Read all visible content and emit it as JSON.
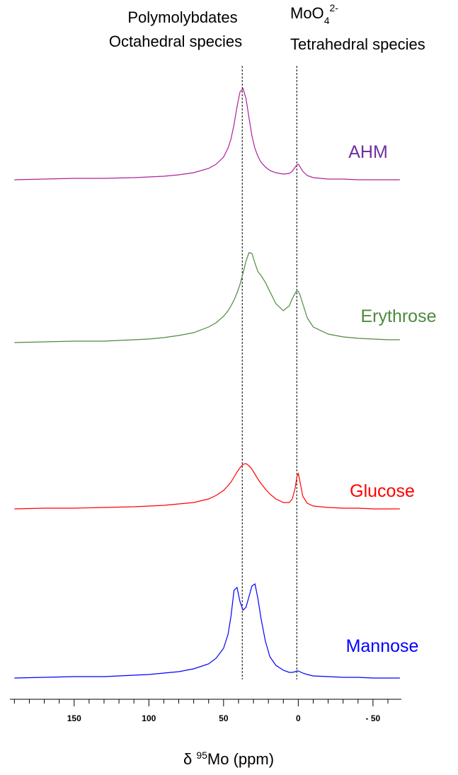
{
  "chart_data": {
    "type": "line",
    "x_label_parts": [
      "δ ",
      "95",
      "Mo (ppm)"
    ],
    "annotations": [
      {
        "lines": [
          "Polymolybdates",
          "Octahedral species"
        ]
      },
      {
        "parts": [
          "MoO",
          "4",
          "2-"
        ],
        "lines": [
          "Tetrahedral species"
        ]
      }
    ],
    "reference_lines": [
      37.5,
      1
    ],
    "xlim": [
      193,
      -69
    ],
    "xticks": [
      150,
      100,
      50,
      0,
      {
        "value": -50,
        "label": "- 50"
      }
    ],
    "xminor_ticks": [
      190,
      180,
      170,
      160,
      140,
      130,
      120,
      110,
      90,
      80,
      70,
      60,
      40,
      30,
      20,
      10,
      -10,
      -20,
      -30,
      -40,
      -60
    ],
    "ylim": [
      0,
      130
    ],
    "x": [
      190,
      170,
      150,
      130,
      110,
      100,
      90,
      80,
      70,
      60,
      55,
      50,
      47,
      45,
      43,
      41,
      39,
      37,
      35,
      33,
      31,
      29,
      27,
      25,
      22,
      19,
      15,
      10,
      6,
      4,
      2,
      1,
      0,
      -1,
      -3,
      -6,
      -10,
      -20,
      -30,
      -40,
      -50,
      -60,
      -68
    ],
    "series": [
      {
        "name": "AHM",
        "color": "#b0209a",
        "label_color": "#7030a0",
        "values": [
          0,
          1,
          2,
          2,
          3,
          4,
          5,
          7,
          10,
          16,
          22,
          32,
          45,
          58,
          78,
          103,
          124,
          129,
          115,
          88,
          62,
          44,
          33,
          25,
          18,
          13,
          10,
          8,
          9,
          12,
          18,
          21,
          22,
          19,
          12,
          6,
          3,
          1,
          1,
          0,
          0,
          0,
          0
        ]
      },
      {
        "name": "Erythrose",
        "color": "#4e8a3e",
        "label_color": "#4e8a3e",
        "values": [
          0,
          1,
          2,
          2,
          4,
          5,
          7,
          10,
          14,
          22,
          28,
          37,
          45,
          52,
          60,
          70,
          82,
          98,
          115,
          127,
          126,
          112,
          100,
          95,
          85,
          72,
          55,
          45,
          52,
          62,
          70,
          73,
          72,
          68,
          55,
          35,
          22,
          12,
          8,
          6,
          5,
          4,
          4
        ]
      },
      {
        "name": "Glucose",
        "color": "#ff0000",
        "label_color": "#ff0000",
        "values": [
          0,
          1,
          1,
          2,
          3,
          4,
          5,
          7,
          9,
          14,
          19,
          26,
          33,
          38,
          45,
          52,
          58,
          63,
          64,
          61,
          56,
          49,
          42,
          36,
          28,
          21,
          14,
          9,
          9,
          14,
          30,
          45,
          50,
          40,
          18,
          8,
          4,
          2,
          1,
          1,
          0,
          0,
          0
        ]
      },
      {
        "name": "Mannose",
        "color": "#0000ff",
        "label_color": "#0000ff",
        "values": [
          0,
          1,
          2,
          2,
          4,
          5,
          7,
          9,
          13,
          20,
          28,
          42,
          62,
          88,
          124,
          128,
          108,
          96,
          100,
          115,
          130,
          133,
          112,
          85,
          52,
          30,
          18,
          11,
          8,
          8,
          9,
          10,
          10,
          9,
          7,
          5,
          3,
          2,
          1,
          1,
          0,
          0,
          0
        ]
      }
    ]
  }
}
